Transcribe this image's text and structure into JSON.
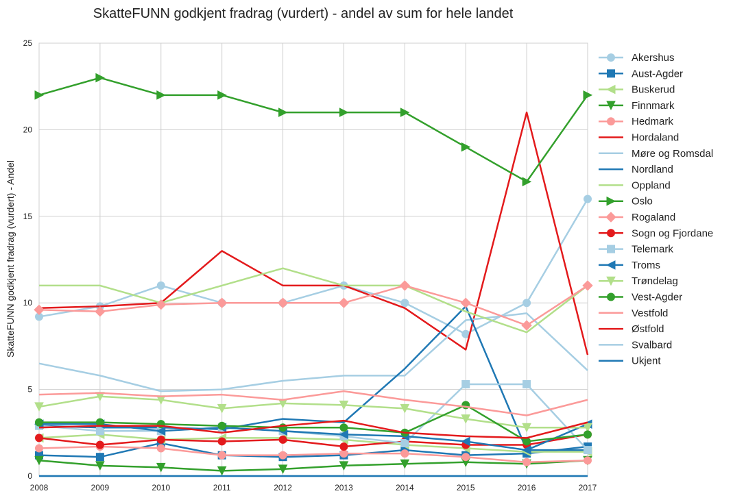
{
  "chart_data": {
    "type": "line",
    "title": "SkatteFUNN godkjent fradrag (vurdert) - andel av sum for hele landet",
    "xlabel": "",
    "ylabel": "SkatteFUNN godkjent fradrag (vurdert) - Andel",
    "x": [
      "2008",
      "2009",
      "2010",
      "2011",
      "2012",
      "2013",
      "2014",
      "2015",
      "2016",
      "2017"
    ],
    "ylim": [
      0,
      25
    ],
    "yticks": [
      "0",
      "5",
      "10",
      "15",
      "20",
      "25"
    ],
    "grid": true,
    "legend_position": "right",
    "series": [
      {
        "name": "Akershus",
        "color": "#a6cee3",
        "marker": "circle",
        "values": [
          9.2,
          9.8,
          11.0,
          10.0,
          10.0,
          11.0,
          10.0,
          8.2,
          10.0,
          16.0
        ]
      },
      {
        "name": "Aust-Agder",
        "color": "#1f78b4",
        "marker": "square",
        "values": [
          1.2,
          1.1,
          1.9,
          1.2,
          1.1,
          1.2,
          1.5,
          1.2,
          1.3,
          1.7
        ]
      },
      {
        "name": "Buskerud",
        "color": "#b2df8a",
        "marker": "triangle-left",
        "values": [
          2.2,
          2.4,
          2.1,
          2.2,
          2.2,
          2.1,
          1.8,
          1.6,
          1.4,
          1.4
        ]
      },
      {
        "name": "Finnmark",
        "color": "#33a02c",
        "marker": "triangle-down",
        "values": [
          0.9,
          0.6,
          0.5,
          0.3,
          0.4,
          0.6,
          0.7,
          0.8,
          0.7,
          0.9
        ]
      },
      {
        "name": "Hedmark",
        "color": "#fb9a99",
        "marker": "circle",
        "values": [
          1.6,
          1.7,
          1.6,
          1.2,
          1.2,
          1.3,
          1.3,
          1.1,
          0.8,
          0.9
        ]
      },
      {
        "name": "Hordaland",
        "color": "#e31a1c",
        "marker": "none",
        "values": [
          9.7,
          9.8,
          10.0,
          13.0,
          11.0,
          11.0,
          9.7,
          7.3,
          21.0,
          7.0
        ]
      },
      {
        "name": "Møre og Romsdal",
        "color": "#a6cee3",
        "marker": "none",
        "values": [
          6.5,
          5.8,
          4.9,
          5.0,
          5.5,
          5.8,
          5.8,
          9.0,
          9.4,
          6.1
        ]
      },
      {
        "name": "Nordland",
        "color": "#1f78b4",
        "marker": "none",
        "values": [
          2.9,
          2.8,
          2.8,
          2.7,
          3.3,
          3.1,
          6.2,
          9.8,
          1.5,
          1.5
        ]
      },
      {
        "name": "Oppland",
        "color": "#b2df8a",
        "marker": "none",
        "values": [
          11.0,
          11.0,
          10.0,
          11.0,
          12.0,
          11.0,
          11.0,
          9.5,
          8.3,
          11.0
        ]
      },
      {
        "name": "Oslo",
        "color": "#33a02c",
        "marker": "triangle-right",
        "values": [
          22.0,
          23.0,
          22.0,
          22.0,
          21.0,
          21.0,
          21.0,
          19.0,
          17.0,
          22.0
        ]
      },
      {
        "name": "Rogaland",
        "color": "#fb9a99",
        "marker": "diamond",
        "values": [
          9.6,
          9.5,
          9.9,
          10.0,
          10.0,
          10.0,
          11.0,
          10.0,
          8.7,
          11.0
        ]
      },
      {
        "name": "Sogn og Fjordane",
        "color": "#e31a1c",
        "marker": "circle",
        "values": [
          2.2,
          1.8,
          2.1,
          2.0,
          2.1,
          1.7,
          2.0,
          1.8,
          1.8,
          2.4
        ]
      },
      {
        "name": "Telemark",
        "color": "#a6cee3",
        "marker": "square",
        "values": [
          2.9,
          2.6,
          2.6,
          2.8,
          2.6,
          2.3,
          1.9,
          5.3,
          5.3,
          1.5
        ]
      },
      {
        "name": "Troms",
        "color": "#1f78b4",
        "marker": "triangle-left",
        "values": [
          3.0,
          3.0,
          2.6,
          2.8,
          2.6,
          2.4,
          2.3,
          2.0,
          1.5,
          3.0
        ]
      },
      {
        "name": "Trøndelag",
        "color": "#b2df8a",
        "marker": "triangle-down",
        "values": [
          4.0,
          4.6,
          4.4,
          3.9,
          4.2,
          4.1,
          3.9,
          3.3,
          2.8,
          2.8
        ]
      },
      {
        "name": "Vest-Agder",
        "color": "#33a02c",
        "marker": "circle",
        "values": [
          3.1,
          3.1,
          3.0,
          2.9,
          2.8,
          2.8,
          2.5,
          4.1,
          2.0,
          2.4
        ]
      },
      {
        "name": "Vestfold",
        "color": "#fb9a99",
        "marker": "none",
        "values": [
          4.7,
          4.8,
          4.6,
          4.7,
          4.4,
          4.9,
          4.4,
          4.0,
          3.5,
          4.4
        ]
      },
      {
        "name": "Østfold",
        "color": "#e31a1c",
        "marker": "none",
        "values": [
          2.8,
          2.9,
          2.9,
          2.5,
          2.9,
          3.2,
          2.5,
          2.3,
          2.2,
          3.1
        ]
      },
      {
        "name": "Svalbard",
        "color": "#a6cee3",
        "marker": "none",
        "values": [
          0.0,
          0.0,
          0.0,
          0.0,
          0.0,
          0.0,
          0.0,
          0.0,
          0.0,
          0.0
        ]
      },
      {
        "name": "Ukjent",
        "color": "#1f78b4",
        "marker": "none",
        "values": [
          0.0,
          0.0,
          0.0,
          0.0,
          0.0,
          0.0,
          0.0,
          0.0,
          0.0,
          0.0
        ]
      }
    ]
  }
}
